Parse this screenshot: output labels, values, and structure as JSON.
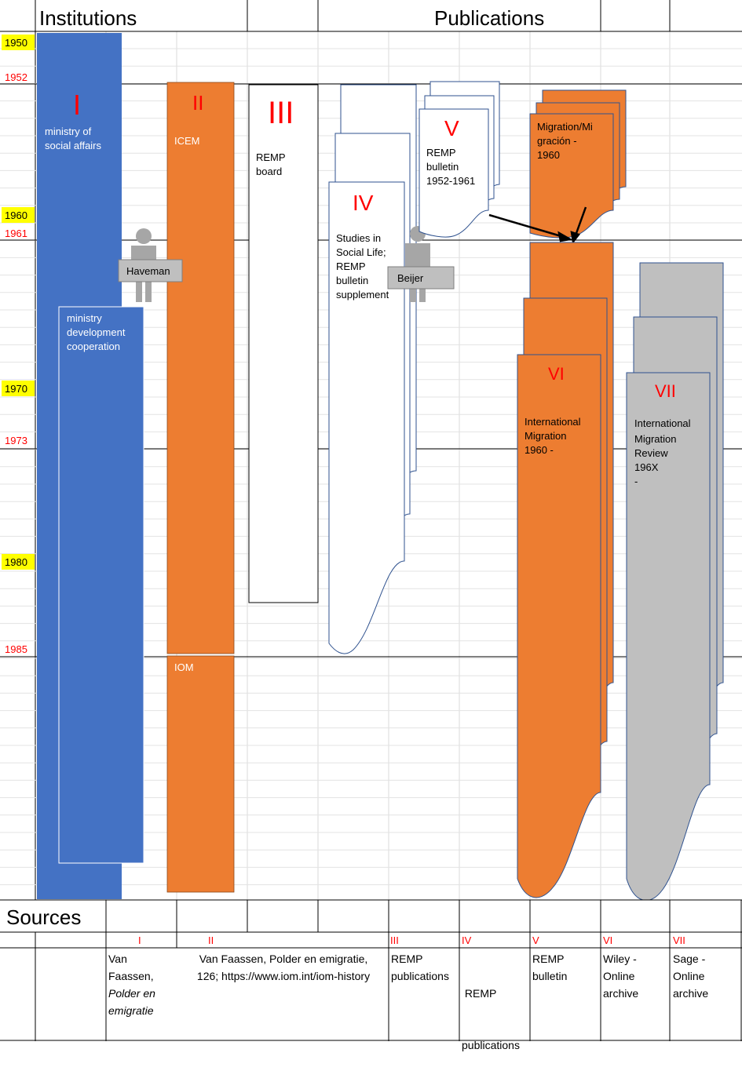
{
  "header": {
    "institutions": "Institutions",
    "publications": "Publications"
  },
  "years": {
    "y1950": "1950",
    "y1952": "1952",
    "y1960": "1960",
    "y1961": "1961",
    "y1970": "1970",
    "y1973": "1973",
    "y1980": "1980",
    "y1985": "1985"
  },
  "institutions": {
    "ministry_social": {
      "numeral": "I",
      "label1": "ministry of",
      "label2": "social affairs"
    },
    "ministry_dev": {
      "label1": "ministry",
      "label2": "development",
      "label3": "cooperation"
    },
    "icem": {
      "numeral": "II",
      "label": "ICEM"
    },
    "iom": {
      "label": "IOM"
    },
    "remp_board": {
      "numeral": "III",
      "label1": "REMP",
      "label2": "board"
    }
  },
  "persons": {
    "haveman": "Haveman",
    "beijer": "Beijer"
  },
  "publications": {
    "iv": {
      "numeral": "IV",
      "l1": "Studies in",
      "l2": "Social Life;",
      "l3": "REMP",
      "l4": "bulletin",
      "l5": "supplement"
    },
    "v": {
      "numeral": "V",
      "l1": "REMP",
      "l2": "bulletin",
      "l3": "1952-1961"
    },
    "migracion": {
      "l1": "Migration/Mi",
      "l2": "gración -",
      "l3": "1960"
    },
    "vi": {
      "numeral": "VI",
      "l1": "International",
      "l2": "Migration",
      "l3": "1960 -"
    },
    "vii": {
      "numeral": "VII",
      "l1": "International",
      "l2": "Migration",
      "l3": "Review",
      "l4": "196X",
      "l5": "-"
    }
  },
  "sources": {
    "title": "Sources",
    "numerals": {
      "i": "I",
      "ii": "II",
      "iii": "III",
      "iv": "IV",
      "v": "V",
      "vi": "VI",
      "vii": "VII"
    },
    "i": {
      "l1": "Van",
      "l2": "Faassen,",
      "l3": "Polder en",
      "l4": "emigratie"
    },
    "ii": {
      "l1": "Van Faassen, Polder en emigratie,",
      "l2": "126; https://www.iom.int/iom-history"
    },
    "iii": {
      "l1": "REMP",
      "l2": "publications"
    },
    "iv": {
      "l1": " REMP",
      "l2": "publications"
    },
    "v": {
      "l1": "REMP",
      "l2": "bulletin"
    },
    "vi": {
      "l1": "Wiley -",
      "l2": "Online",
      "l3": "archive"
    },
    "vii": {
      "l1": "Sage -",
      "l2": "Online",
      "l3": "archive"
    }
  },
  "colors": {
    "blue": "#4472c4",
    "orange": "#ed7d31",
    "gray": "#bfbfbf",
    "red": "#ff0000",
    "yellow": "#ffff00"
  }
}
